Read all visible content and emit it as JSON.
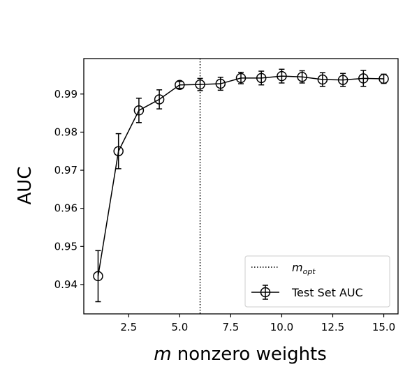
{
  "chart_data": {
    "type": "line",
    "title": "",
    "xlabel_var": "m",
    "xlabel_rest": " nonzero weights",
    "ylabel": "AUC",
    "xlim": [
      0.3,
      15.7
    ],
    "ylim": [
      0.9323,
      0.9993
    ],
    "xticks": [
      2.5,
      5.0,
      7.5,
      10.0,
      12.5,
      15.0
    ],
    "xtick_labels": [
      "2.5",
      "5.0",
      "7.5",
      "10.0",
      "12.5",
      "15.0"
    ],
    "yticks": [
      0.94,
      0.95,
      0.96,
      0.97,
      0.98,
      0.99
    ],
    "ytick_labels": [
      "0.94",
      "0.95",
      "0.96",
      "0.97",
      "0.98",
      "0.99"
    ],
    "grid": false,
    "legend_position": "lower-right",
    "m_opt": 6,
    "series": [
      {
        "name": "Test Set AUC",
        "marker": "open-circle",
        "color": "#000000",
        "x": [
          1,
          2,
          3,
          4,
          5,
          6,
          7,
          8,
          9,
          10,
          11,
          12,
          13,
          14,
          15
        ],
        "y": [
          0.9422,
          0.975,
          0.9857,
          0.9886,
          0.9924,
          0.9925,
          0.9927,
          0.9942,
          0.9942,
          0.9947,
          0.9945,
          0.9938,
          0.9937,
          0.9941,
          0.994
        ],
        "err": [
          0.0067,
          0.0046,
          0.0032,
          0.0025,
          0.0009,
          0.0016,
          0.0017,
          0.0015,
          0.0018,
          0.0018,
          0.0016,
          0.0018,
          0.0017,
          0.0021,
          0.0012
        ]
      }
    ],
    "legend": {
      "mopt_label_base": "m",
      "mopt_label_sub": "opt",
      "series_label": "Test Set AUC"
    }
  }
}
